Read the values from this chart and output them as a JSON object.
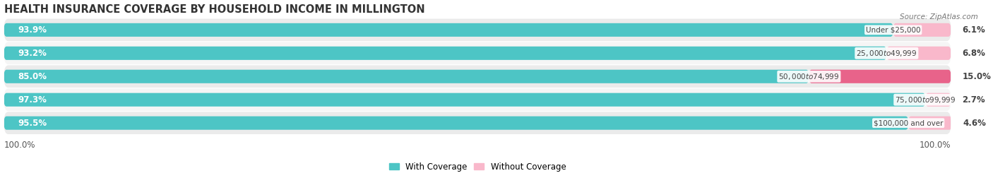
{
  "title": "HEALTH INSURANCE COVERAGE BY HOUSEHOLD INCOME IN MILLINGTON",
  "source": "Source: ZipAtlas.com",
  "categories": [
    "Under $25,000",
    "$25,000 to $49,999",
    "$50,000 to $74,999",
    "$75,000 to $99,999",
    "$100,000 and over"
  ],
  "with_coverage": [
    93.9,
    93.2,
    85.0,
    97.3,
    95.5
  ],
  "without_coverage": [
    6.1,
    6.8,
    15.0,
    2.7,
    4.6
  ],
  "color_with": "#4dc5c5",
  "color_without_light": "#f9b8cb",
  "color_without_dark": "#e8638a",
  "row_colors": [
    "#ebebeb",
    "#f5f5f5",
    "#ebebeb",
    "#f5f5f5",
    "#ebebeb"
  ],
  "bar_height": 0.58,
  "legend_with": "With Coverage",
  "legend_without": "Without Coverage",
  "x_left_label": "100.0%",
  "x_right_label": "100.0%",
  "title_fontsize": 10.5,
  "label_fontsize": 8.5,
  "tick_fontsize": 8.5,
  "category_fontsize": 7.5
}
